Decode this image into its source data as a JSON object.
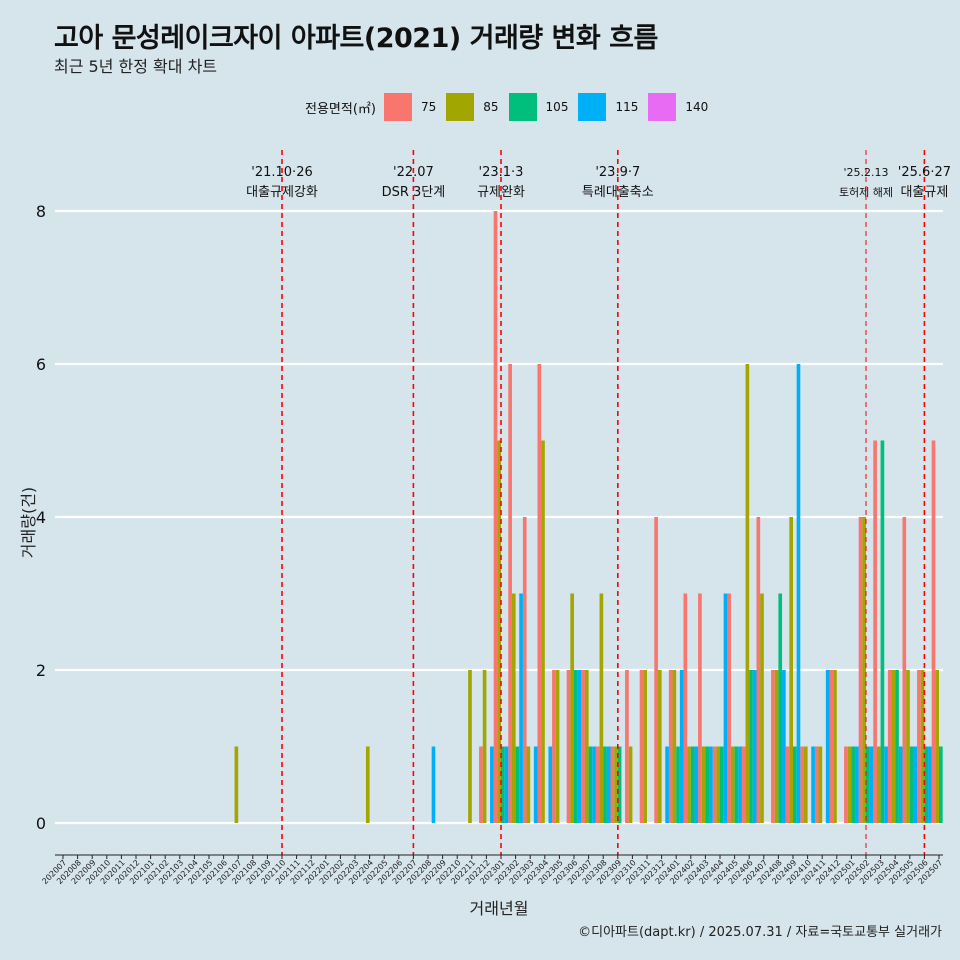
{
  "title": "고아 문성레이크자이 아파트(2021) 거래량 변화 흐름",
  "subtitle": "최근 5년 한정 확대 차트",
  "caption": "©디아파트(dapt.kr) / 2025.07.31 / 자료=국토교통부 실거래가",
  "legend": {
    "title": "전용면적(㎡)",
    "items": [
      {
        "label": "75",
        "color": "#f8766d"
      },
      {
        "label": "85",
        "color": "#a3a500"
      },
      {
        "label": "105",
        "color": "#00bf7d"
      },
      {
        "label": "115",
        "color": "#00b0f6"
      },
      {
        "label": "140",
        "color": "#e76bf3"
      }
    ]
  },
  "chart_data": {
    "type": "bar",
    "title": "고아 문성레이크자이 아파트(2021) 거래량 변화 흐름",
    "xlabel": "거래년월",
    "ylabel": "거래량(건)",
    "ylim": [
      0,
      8.5
    ],
    "yticks": [
      0,
      2,
      4,
      6,
      8
    ],
    "grid": true,
    "legend_position": "top",
    "categories": [
      "202007",
      "202008",
      "202009",
      "202010",
      "202011",
      "202012",
      "202101",
      "202102",
      "202103",
      "202104",
      "202105",
      "202106",
      "202107",
      "202108",
      "202109",
      "202110",
      "202111",
      "202112",
      "202201",
      "202202",
      "202203",
      "202204",
      "202205",
      "202206",
      "202207",
      "202208",
      "202209",
      "202210",
      "202211",
      "202212",
      "202301",
      "202302",
      "202303",
      "202304",
      "202305",
      "202306",
      "202307",
      "202308",
      "202309",
      "202310",
      "202311",
      "202312",
      "202401",
      "202402",
      "202403",
      "202404",
      "202405",
      "202406",
      "202407",
      "202408",
      "202409",
      "202410",
      "202411",
      "202412",
      "202501",
      "202502",
      "202503",
      "202504",
      "202505",
      "202506",
      "202507"
    ],
    "series": [
      {
        "name": "75",
        "color": "#f8766d",
        "values": [
          0,
          0,
          0,
          0,
          0,
          0,
          0,
          0,
          0,
          0,
          0,
          0,
          0,
          0,
          0,
          0,
          0,
          0,
          0,
          0,
          0,
          0,
          0,
          0,
          0,
          0,
          0,
          0,
          0,
          1,
          8,
          6,
          4,
          6,
          2,
          2,
          2,
          1,
          1,
          2,
          2,
          4,
          2,
          3,
          3,
          1,
          3,
          1,
          4,
          2,
          1,
          1,
          1,
          2,
          1,
          4,
          5,
          2,
          4,
          2,
          5
        ]
      },
      {
        "name": "85",
        "color": "#a3a500",
        "values": [
          0,
          0,
          0,
          0,
          0,
          0,
          0,
          0,
          0,
          0,
          0,
          0,
          1,
          0,
          0,
          0,
          0,
          0,
          0,
          0,
          0,
          1,
          0,
          0,
          0,
          0,
          0,
          0,
          2,
          2,
          5,
          3,
          1,
          5,
          2,
          3,
          2,
          3,
          1,
          1,
          2,
          2,
          2,
          1,
          1,
          1,
          1,
          6,
          3,
          2,
          4,
          1,
          1,
          2,
          1,
          4,
          1,
          2,
          2,
          2,
          2
        ]
      },
      {
        "name": "105",
        "color": "#00bf7d",
        "values": [
          0,
          0,
          0,
          0,
          0,
          0,
          0,
          0,
          0,
          0,
          0,
          0,
          0,
          0,
          0,
          0,
          0,
          0,
          0,
          0,
          0,
          0,
          0,
          0,
          0,
          0,
          0,
          0,
          0,
          0,
          1,
          1,
          0,
          0,
          0,
          2,
          1,
          1,
          1,
          0,
          0,
          0,
          1,
          1,
          1,
          1,
          1,
          2,
          0,
          3,
          1,
          0,
          0,
          0,
          1,
          1,
          5,
          2,
          1,
          1,
          1
        ]
      },
      {
        "name": "115",
        "color": "#00b0f6",
        "values": [
          0,
          0,
          0,
          0,
          0,
          0,
          0,
          0,
          0,
          0,
          0,
          0,
          0,
          0,
          0,
          0,
          0,
          0,
          0,
          0,
          0,
          0,
          0,
          0,
          0,
          1,
          0,
          0,
          0,
          1,
          1,
          3,
          1,
          1,
          0,
          2,
          1,
          1,
          0,
          0,
          0,
          1,
          2,
          1,
          1,
          3,
          1,
          2,
          0,
          2,
          6,
          1,
          2,
          0,
          1,
          1,
          1,
          1,
          1,
          1,
          0
        ]
      },
      {
        "name": "140",
        "color": "#e76bf3",
        "values": [
          0,
          0,
          0,
          0,
          0,
          0,
          0,
          0,
          0,
          0,
          0,
          0,
          0,
          0,
          0,
          0,
          0,
          0,
          0,
          0,
          0,
          0,
          0,
          0,
          0,
          0,
          0,
          0,
          0,
          0,
          0,
          0,
          0,
          0,
          0,
          0,
          0,
          0,
          0,
          0,
          0,
          0,
          0,
          0,
          0,
          0,
          0,
          0,
          0,
          0,
          0,
          0,
          0,
          0,
          0,
          0,
          0,
          0,
          0,
          0,
          0
        ]
      }
    ],
    "annotations": [
      {
        "category": "202110",
        "date": "'21.10·26",
        "label": "대출규제강화"
      },
      {
        "category": "202207",
        "date": "'22.07",
        "label": "DSR 3단계"
      },
      {
        "category": "202301",
        "date": "'23.1·3",
        "label": "규제완화"
      },
      {
        "category": "202309",
        "date": "'23.9·7",
        "label": "특례대출축소"
      },
      {
        "category": "202502",
        "date": "'25.2.13",
        "label": "토허제 해제"
      },
      {
        "category": "202506",
        "date": "'25.6·27",
        "label": "대출규제"
      }
    ]
  }
}
